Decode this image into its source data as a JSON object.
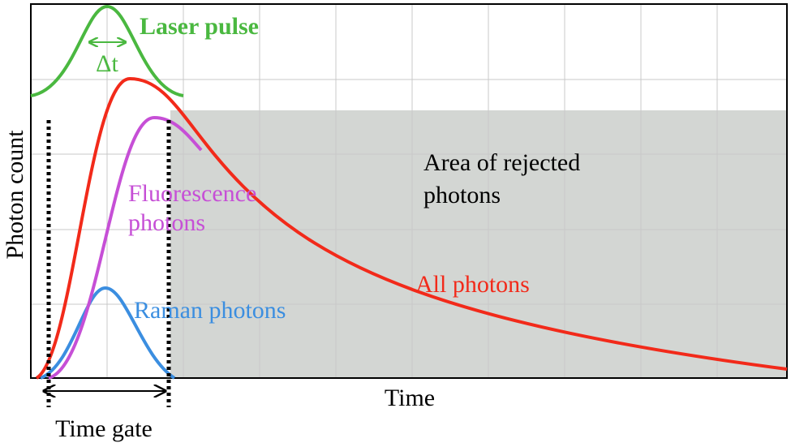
{
  "axes": {
    "y_label": "Photon count",
    "x_label": "Time"
  },
  "labels": {
    "laser": "Laser pulse",
    "delta": "Δt",
    "fluorescence_1": "Fluorescence",
    "fluorescence_2": "photons",
    "raman": "Raman photons",
    "all": "All photons",
    "rejected_1": "Area of rejected",
    "rejected_2": "photons",
    "gate": "Time gate"
  }
}
